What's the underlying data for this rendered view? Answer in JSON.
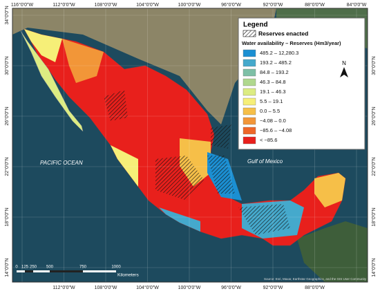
{
  "map": {
    "graticule_top": [
      "116°0'0\"W",
      "112°0'0\"W",
      "108°0'0\"W",
      "104°0'0\"W",
      "100°0'0\"W",
      "96°0'0\"W",
      "92°0'0\"W",
      "88°0'0\"W",
      "84°0'0\"W"
    ],
    "graticule_bottom": [
      "112°0'0\"W",
      "108°0'0\"W",
      "104°0'0\"W",
      "100°0'0\"W",
      "96°0'0\"W",
      "92°0'0\"W",
      "88°0'0\"W"
    ],
    "graticule_left": [
      "34°0'0\"N",
      "30°0'0\"N",
      "26°0'0\"N",
      "22°0'0\"N",
      "18°0'0\"N",
      "14°0'0\"N"
    ],
    "graticule_right": [
      "30°0'0\"N",
      "26°0'0\"N",
      "22°0'0\"N",
      "18°0'0\"N",
      "14°0'0\"N"
    ],
    "ocean_labels": [
      "PACIFIC OCEAN",
      "Gulf of Mexico"
    ],
    "legend": {
      "title": "Legend",
      "reserves": "Reserves enacted",
      "subtitle": "Water availability – Reserves (Hm3/year)",
      "items": [
        {
          "label": "485.2 – 12,280.3",
          "color": "#1b8fd2"
        },
        {
          "label": "193.2 – 485.2",
          "color": "#45a9cc"
        },
        {
          "label": "84.8 – 193.2",
          "color": "#7dbfa6"
        },
        {
          "label": "46.3 – 84.8",
          "color": "#b0d88e"
        },
        {
          "label": "19.1 – 46.3",
          "color": "#dcec82"
        },
        {
          "label": "5.5 – 19.1",
          "color": "#f6ef78"
        },
        {
          "label": "0.0 – 5.5",
          "color": "#f6bf48"
        },
        {
          "label": "−4.08 – 0.0",
          "color": "#f29638"
        },
        {
          "label": "−85.6 – −4.08",
          "color": "#ee6628"
        },
        {
          "label": "< −85.6",
          "color": "#e8201c"
        }
      ],
      "north": "N"
    },
    "scale_bar": {
      "labels": [
        "0",
        "125",
        "250",
        "500",
        "750",
        "1000"
      ],
      "unit": "Kilometers"
    },
    "attribution": "Source: Esri, Maxar, Earthstar Geographics, and the GIS User Community"
  }
}
